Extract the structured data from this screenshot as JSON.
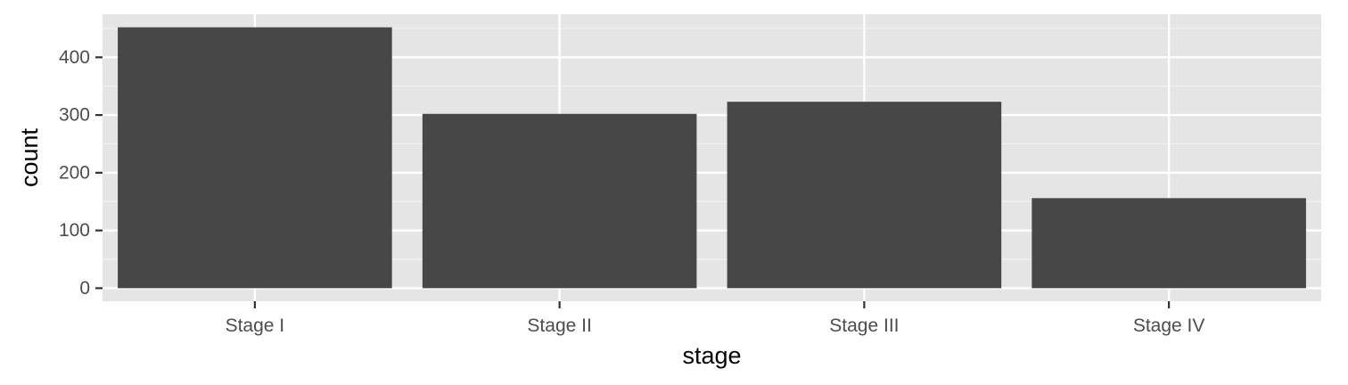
{
  "chart_data": {
    "type": "bar",
    "categories": [
      "Stage I",
      "Stage II",
      "Stage III",
      "Stage IV"
    ],
    "values": [
      452,
      302,
      323,
      156
    ],
    "xlabel": "stage",
    "ylabel": "count",
    "ylim": [
      -22.6,
      474.6
    ],
    "yticks": [
      0,
      100,
      200,
      300,
      400
    ],
    "grid": true,
    "legend": "none",
    "colors": {
      "panel_background": "#e5e5e5",
      "grid_major": "#ffffff",
      "grid_minor": "#f2f2f2",
      "bar_fill": "#474747",
      "tick_mark": "#333333",
      "tick_label": "#4d4d4d",
      "axis_title": "#000000"
    }
  }
}
